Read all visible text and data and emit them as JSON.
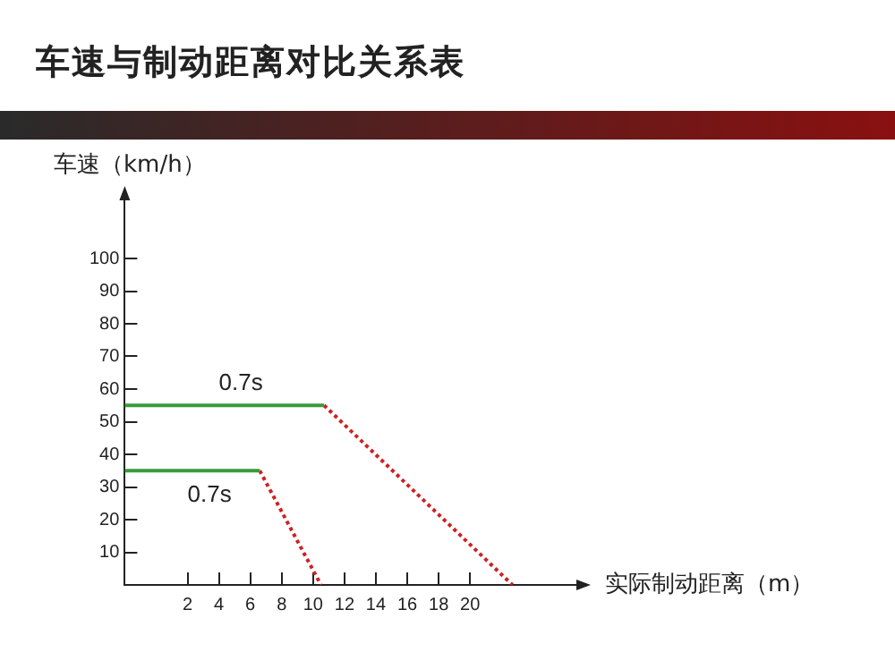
{
  "chart_data": {
    "type": "line",
    "title": "车速与制动距离对比关系表",
    "xlabel": "实际制动距离（m）",
    "ylabel": "车速（km/h）",
    "xlim": [
      -2,
      27
    ],
    "xticks": [
      2,
      4,
      6,
      8,
      10,
      12,
      14,
      16,
      18,
      20
    ],
    "ylim": [
      0,
      120
    ],
    "yticks": [
      10,
      20,
      30,
      40,
      50,
      60,
      70,
      80,
      90,
      100
    ],
    "series": [
      {
        "x": [
          -2,
          10.7
        ],
        "values": [
          55,
          55
        ],
        "color": "#3a9a3a",
        "line_style": "solid"
      },
      {
        "x": [
          10.7,
          22.7
        ],
        "values": [
          55,
          0
        ],
        "color": "#cc2222",
        "line_style": "dotted"
      },
      {
        "x": [
          -2,
          6.6
        ],
        "values": [
          35,
          35
        ],
        "color": "#3a9a3a",
        "line_style": "solid"
      },
      {
        "x": [
          6.6,
          10.5
        ],
        "values": [
          35,
          0
        ],
        "color": "#cc2222",
        "line_style": "dotted"
      }
    ],
    "annotations": [
      {
        "text": "0.7s",
        "x": 4,
        "y": 55
      },
      {
        "text": "0.7s",
        "x": 2,
        "y": 35
      }
    ],
    "marker": "none",
    "grid": false,
    "legend": false
  }
}
